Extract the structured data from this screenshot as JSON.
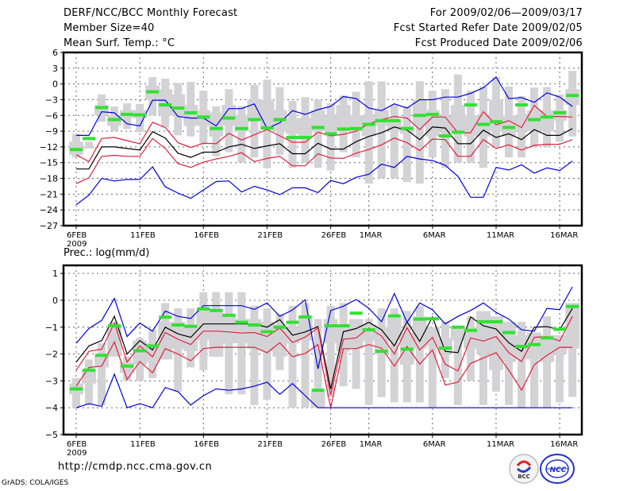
{
  "header": {
    "left": [
      "DERF/NCC/BCC Monthly Forecast",
      "Member Size=40",
      "Mean Surf. Temp.: °C"
    ],
    "right": [
      "For 2009/02/06—2009/03/17",
      "Fcst Started Refer Date 2009/02/05",
      "Fcst Produced Date 2009/02/06"
    ]
  },
  "footer": {
    "url": "http://cmdp.ncc.cma.gov.cn",
    "grads": "GrADS: COLA/IGES",
    "logos": [
      "BCC",
      "NCC"
    ]
  },
  "colors": {
    "box": "#d3d3d6",
    "median": "#33e033",
    "mean_line": "#000000",
    "inner_band": "#e0203c",
    "outer_band": "#0000e0",
    "grid": "#666666"
  },
  "chart_data": [
    {
      "type": "line",
      "title": "Mean Surf. Temp.: °C",
      "xlabel": "",
      "ylabel": "",
      "x_ticks": [
        "6FEB\n2009",
        "11FEB",
        "16FEB",
        "21FEB",
        "26FEB",
        "1MAR",
        "6MAR",
        "11MAR",
        "16MAR"
      ],
      "x_tick_days": [
        0,
        5,
        10,
        15,
        20,
        23,
        28,
        33,
        38
      ],
      "y_ticks": [
        6,
        3,
        0,
        -3,
        -6,
        -9,
        -12,
        -15,
        -18,
        -21,
        -24,
        -27
      ],
      "ylim": [
        -27,
        6
      ],
      "grid": true,
      "days": 40,
      "boxes": {
        "max": [
          -9.5,
          -11,
          -2,
          -4.3,
          -3.7,
          -3.8,
          1.3,
          1,
          0.2,
          0.4,
          -1.3,
          -4.3,
          -1,
          -4.2,
          -0.2,
          0.8,
          -0.6,
          -3.2,
          -2.5,
          -3,
          -3.7,
          -2.2,
          -1.5,
          0.5,
          0.5,
          -4,
          -4.3,
          0.5,
          -1.3,
          -1,
          1.8,
          -1.3,
          -0.5,
          1.3,
          -0.5,
          -2.3,
          -0.7,
          -0.6,
          -2,
          2.5
        ],
        "q75": [
          -11,
          -12,
          -4,
          -6,
          -5,
          -5,
          -0.3,
          -1,
          -2,
          -4,
          -5,
          -5.5,
          -4,
          -6,
          -3,
          -3,
          -5,
          -6.5,
          -6.5,
          -5,
          -6,
          -4,
          -6,
          -6,
          -5,
          -7,
          -8,
          -3,
          -5,
          -6,
          -4,
          -6,
          -6,
          -3,
          -6,
          -6,
          -5,
          -5,
          -5,
          -1
        ],
        "q25": [
          -13.5,
          -12,
          -6,
          -8,
          -6.5,
          -6.5,
          -3,
          -6,
          -6,
          -8,
          -8,
          -10,
          -8,
          -9,
          -7,
          -8.5,
          -9,
          -9.5,
          -10,
          -9,
          -9,
          -9,
          -9,
          -10,
          -8,
          -9,
          -9.5,
          -8,
          -10,
          -9,
          -9,
          -10,
          -10,
          -9,
          -10,
          -9,
          -9,
          -9,
          -7,
          -4
        ],
        "min": [
          -14,
          -12,
          -7.2,
          -9,
          -8.6,
          -9.2,
          -6,
          -8.3,
          -9.8,
          -10,
          -11.5,
          -13.8,
          -13,
          -15,
          -14,
          -16,
          -13.5,
          -16,
          -15,
          -16,
          -16.5,
          -13,
          -14,
          -19,
          -18,
          -18,
          -18.7,
          -19,
          -14,
          -16,
          -15,
          -15,
          -16,
          -12,
          -14,
          -14,
          -12,
          -12,
          -11,
          -10
        ]
      },
      "series": [
        {
          "name": "median",
          "style": "green-bar",
          "values": [
            -12.5,
            -10.4,
            -4.5,
            -6.8,
            -5.8,
            -5.9,
            -1.5,
            -4,
            -4.6,
            -5.5,
            -6.3,
            -8.5,
            -6.5,
            -8.5,
            -6.8,
            -8.4,
            -6.8,
            -10.2,
            -10.2,
            -8.3,
            -9.5,
            -8.6,
            -8.5,
            -7.7,
            -7,
            -7,
            -8.5,
            -6,
            -5.8,
            -9.9,
            -9.2,
            -4,
            -7.7,
            -7.2,
            -8.3,
            -4,
            -6.8,
            -6.3,
            -5.5,
            -2.2
          ]
        },
        {
          "name": "mean",
          "color": "#000000",
          "values": [
            -16.2,
            -16.2,
            -12,
            -12,
            -12.3,
            -12.6,
            -9.1,
            -10.3,
            -13.2,
            -14,
            -13,
            -13,
            -12,
            -11.5,
            -12.3,
            -11.8,
            -11.4,
            -13.3,
            -13.3,
            -11.3,
            -12.4,
            -12.4,
            -11,
            -10,
            -9.3,
            -8.2,
            -8.8,
            -10.6,
            -8.2,
            -8.4,
            -11.4,
            -11.4,
            -8.8,
            -10.2,
            -9.5,
            -10.6,
            -8.7,
            -9.8,
            -9.8,
            -8.5
          ]
        },
        {
          "name": "inner_upper",
          "color": "#e0203c",
          "values": [
            -13.5,
            -14.8,
            -10.4,
            -10.2,
            -10.8,
            -11.4,
            -7.3,
            -8.3,
            -11.2,
            -12.1,
            -11.3,
            -11.4,
            -9.4,
            -10.7,
            -9.7,
            -8.7,
            -9.9,
            -11.1,
            -11.1,
            -9.2,
            -9.9,
            -9.6,
            -9,
            -7.6,
            -6.8,
            -6.2,
            -6.5,
            -8.7,
            -6.3,
            -6.3,
            -9.3,
            -9.3,
            -5.3,
            -7.8,
            -7,
            -8.3,
            -4.1,
            -6.2,
            -6.2,
            -6.3
          ]
        },
        {
          "name": "inner_lower",
          "color": "#e0203c",
          "values": [
            -19,
            -17.9,
            -13.8,
            -13.6,
            -13.8,
            -13.8,
            -10.4,
            -12.3,
            -15.2,
            -15.9,
            -14.9,
            -14.3,
            -13.8,
            -13.1,
            -14.8,
            -14.2,
            -13.8,
            -15.6,
            -15.6,
            -13.3,
            -14.1,
            -14.2,
            -13.2,
            -12.5,
            -11.6,
            -10.3,
            -11.2,
            -12.7,
            -10.5,
            -10.6,
            -13.8,
            -13.8,
            -10.6,
            -12.3,
            -11.6,
            -12.6,
            -11.7,
            -11.5,
            -11.5,
            -10.6
          ]
        },
        {
          "name": "outer_upper",
          "color": "#0000e0",
          "values": [
            -9.8,
            -9.8,
            -5.3,
            -5.5,
            -7.6,
            -8,
            -3.1,
            -3.1,
            -6.2,
            -6.5,
            -6.5,
            -8,
            -4.7,
            -4.7,
            -3.8,
            -8.5,
            -7.4,
            -5.1,
            -5.8,
            -4.9,
            -4.3,
            -2.4,
            -2.8,
            -4.6,
            -5.1,
            -3.8,
            -4.6,
            -3,
            -3,
            -2.5,
            -2.5,
            -1.8,
            -0.7,
            1.3,
            -2.8,
            -2.6,
            -3.5,
            -1.7,
            -2.5,
            -4.3
          ]
        },
        {
          "name": "outer_lower",
          "color": "#0000e0",
          "values": [
            -23,
            -21.2,
            -18,
            -18.5,
            -18.2,
            -18.2,
            -15.8,
            -19.6,
            -20.8,
            -21.8,
            -20.2,
            -18.6,
            -18.5,
            -20.6,
            -19.5,
            -20.2,
            -21.1,
            -19.8,
            -19.8,
            -20.7,
            -18.4,
            -19,
            -17.8,
            -17.2,
            -15.3,
            -15.9,
            -13.8,
            -14.3,
            -14.6,
            -15.5,
            -17.6,
            -21.6,
            -21.6,
            -15.9,
            -16.4,
            -15.4,
            -17,
            -16,
            -16.5,
            -14.7
          ]
        }
      ]
    },
    {
      "type": "line",
      "title": "Prec.: log(mm/d)",
      "xlabel": "",
      "ylabel": "",
      "x_ticks": [
        "6FEB\n2009",
        "11FEB",
        "16FEB",
        "21FEB",
        "26FEB",
        "1MAR",
        "6MAR",
        "11MAR",
        "16MAR"
      ],
      "x_tick_days": [
        0,
        5,
        10,
        15,
        20,
        23,
        28,
        33,
        38
      ],
      "y_ticks": [
        1,
        0,
        -1,
        -2,
        -3,
        -4,
        -5
      ],
      "ylim": [
        -5,
        1.3
      ],
      "grid": true,
      "days": 40,
      "boxes": {
        "max": [
          -2.9,
          -2.2,
          -1.6,
          -0.8,
          -2.1,
          -1.4,
          -1.1,
          -0.1,
          -0.3,
          -0.3,
          0.3,
          0.3,
          0.3,
          0.3,
          -0.2,
          -0.3,
          -0.5,
          -0.2,
          -0.1,
          -0.7,
          -0.2,
          -0.1,
          -0.8,
          -0.7,
          -0.3,
          -0.3,
          -0.4,
          -0.2,
          -1.2,
          -0.8,
          -1.2,
          -0.6,
          -0.8,
          -0.9,
          -1.1,
          -0.8,
          -1.2,
          -0.6,
          -1.3,
          -1.4
        ],
        "q75": [
          -3.1,
          -2.6,
          -2,
          -0.9,
          -2.3,
          -1.5,
          -1.6,
          -0.8,
          -0.8,
          -0.9,
          -0.3,
          -0.3,
          -0.5,
          -0.7,
          -0.7,
          -0.8,
          -0.9,
          -1,
          -0.6,
          -3.4,
          -0.7,
          -1,
          -0.7,
          -0.9,
          -1,
          -0.6,
          -1.2,
          -0.6,
          -1,
          -1.4,
          -1,
          -1,
          -0.4,
          -0.6,
          -0.8,
          -1.3,
          -1.2,
          -1.3,
          -1.3,
          -0.1
        ],
        "q25": [
          -3.5,
          -3.1,
          -2.5,
          -2.1,
          -2.7,
          -2.4,
          -2.3,
          -2.2,
          -1.8,
          -1.9,
          -1.5,
          -2.1,
          -1.6,
          -1.6,
          -1.8,
          -1.9,
          -2.1,
          -1.6,
          -1.5,
          -4,
          -1.6,
          -1.9,
          -1.8,
          -1.5,
          -2,
          -1.5,
          -2.4,
          -1.8,
          -1.7,
          -2,
          -1.5,
          -1.8,
          -2,
          -2.6,
          -2.3,
          -2.2,
          -2.2,
          -2.3,
          -2,
          -1.8
        ],
        "min": [
          -4,
          -3.9,
          -3.9,
          -2.1,
          -3,
          -3,
          -2.9,
          -2.2,
          -3.4,
          -2.5,
          -2.6,
          -2.1,
          -3.5,
          -3.5,
          -3.9,
          -3.7,
          -2.6,
          -4,
          -4,
          -4,
          -3.6,
          -3.2,
          -3.3,
          -3.9,
          -3.6,
          -3.8,
          -3.8,
          -3.8,
          -4,
          -2.9,
          -3.9,
          -3,
          -3.9,
          -3.4,
          -3.9,
          -4,
          -4,
          -4,
          -3.8,
          -3.6
        ],
        "hi_pad": [
          -3.5,
          -3.1,
          -2.5,
          -2.1,
          -2.7,
          -2.4,
          -2.3,
          -2.2,
          -3.4,
          -2.5,
          -2.6,
          -2.1,
          -3.5,
          -3.5,
          -3.9,
          -3.7,
          -2.6,
          -4,
          -4,
          -4,
          -3.6,
          -3.2,
          -3.3,
          -3.9,
          -3.6,
          -3.8,
          -3.8,
          -3.8,
          -4,
          -2.9,
          -3.9,
          -3,
          -3.9,
          -3.4,
          -3.9,
          -4,
          -4,
          -4,
          -3.8,
          -3.6
        ]
      },
      "series": [
        {
          "name": "median",
          "style": "green-bar",
          "values": [
            -3.3,
            -2.6,
            -2.05,
            -0.95,
            -2.45,
            -1.88,
            -1.7,
            -0.63,
            -0.92,
            -0.97,
            -0.32,
            -0.38,
            -0.56,
            -0.82,
            -0.92,
            -1.17,
            -1,
            -0.82,
            -0.62,
            -3.35,
            -0.95,
            -0.95,
            -0.48,
            -1.1,
            -1.9,
            -0.58,
            -1.82,
            -0.7,
            -0.69,
            -1.78,
            -1,
            -1.12,
            -0.8,
            -0.8,
            -1.2,
            -1.72,
            -1.65,
            -1.4,
            -1.08,
            -0.23
          ]
        },
        {
          "name": "mean",
          "color": "#000000",
          "values": [
            -2.3,
            -1.7,
            -1.5,
            -0.6,
            -2,
            -1.5,
            -1.85,
            -1,
            -1.25,
            -1.38,
            -0.88,
            -0.88,
            -0.88,
            -0.88,
            -0.88,
            -1,
            -0.72,
            -1.3,
            -1.18,
            -0.98,
            -3.3,
            -1.17,
            -1.05,
            -0.82,
            -1.1,
            -1.7,
            -0.8,
            -1.53,
            -0.62,
            -1.9,
            -1.95,
            -0.62,
            -0.95,
            -1.07,
            -1.58,
            -1.9,
            -1,
            -0.98,
            -1.1,
            -0.3
          ]
        },
        {
          "name": "inner_upper",
          "color": "#e0203c",
          "values": [
            -2.6,
            -1.9,
            -1.82,
            -0.85,
            -2.3,
            -1.7,
            -2.1,
            -1.2,
            -1.45,
            -1.65,
            -1.15,
            -1.15,
            -1.18,
            -1.22,
            -1.2,
            -1.35,
            -1.03,
            -1.57,
            -1.37,
            -1.03,
            -3.53,
            -1.45,
            -1.4,
            -1.03,
            -1.33,
            -2,
            -1.02,
            -1.85,
            -1.38,
            -2.38,
            -2.63,
            -1.4,
            -1.52,
            -1.35,
            -1.95,
            -2.28,
            -1.38,
            -1.35,
            -1.52,
            -0.6
          ]
        },
        {
          "name": "inner_lower",
          "color": "#e0203c",
          "values": [
            -3.2,
            -2.5,
            -2.45,
            -1.55,
            -2.95,
            -2.28,
            -2.7,
            -1.8,
            -2,
            -2.25,
            -1.8,
            -1.75,
            -1.75,
            -1.75,
            -1.75,
            -1.95,
            -1.58,
            -2.1,
            -1.98,
            -1.65,
            -4,
            -1.8,
            -1.8,
            -1.65,
            -1.78,
            -2.45,
            -1.72,
            -2.38,
            -1.85,
            -3.15,
            -3.05,
            -2.35,
            -2.15,
            -1.95,
            -2.6,
            -3.35,
            -2.4,
            -2.05,
            -1.75,
            -1.75
          ]
        },
        {
          "name": "outer_upper",
          "color": "#0000e0",
          "values": [
            -1.6,
            -1.05,
            -0.75,
            0.07,
            -1.35,
            -0.85,
            -1.15,
            -0.4,
            -0.6,
            -0.68,
            -0.2,
            -0.2,
            -0.2,
            -0.2,
            -0.34,
            -0.1,
            -0.6,
            -0.36,
            0.02,
            -2.55,
            -0.38,
            -0.22,
            0.03,
            -0.3,
            -0.8,
            0.25,
            -0.82,
            -0.1,
            -0.35,
            -0.88,
            -0.6,
            -0.38,
            -0.1,
            -0.45,
            -0.7,
            -1.1,
            -1.15,
            -0.3,
            -0.35,
            0.5
          ]
        },
        {
          "name": "outer_lower",
          "color": "#0000e0",
          "values": [
            -4,
            -3.85,
            -3.95,
            -2.75,
            -4,
            -3.85,
            -4,
            -3.25,
            -3.4,
            -3.9,
            -3.55,
            -3.3,
            -3.35,
            -3.3,
            -3.2,
            -3.05,
            -3.5,
            -3.1,
            -3.55,
            -4,
            -4,
            -4,
            -4,
            -4,
            -4,
            -4,
            -4,
            -4,
            -4,
            -4,
            -4,
            -4,
            -4,
            -4,
            -4,
            -4,
            -4,
            -4,
            -4,
            -4
          ]
        }
      ]
    }
  ]
}
